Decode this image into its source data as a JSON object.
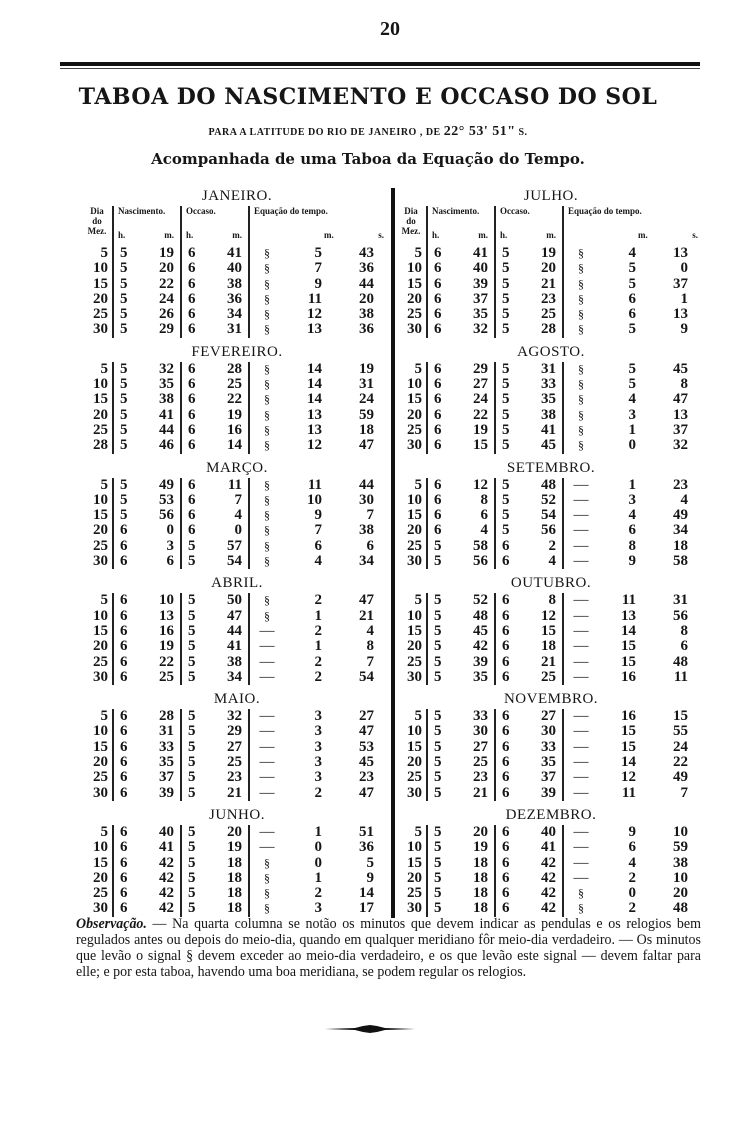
{
  "page_number": "20",
  "title": "TABOA DO NASCIMENTO E OCCASO DO SOL",
  "subtitle_prefix": "PARA A LATITUDE DO RIO DE JANEIRO ,  DE",
  "subtitle_latitude": "22° 53' 51\"",
  "subtitle_suffix": "S.",
  "subtitle2": "Acompanhada de uma Taboa da Equação do Tempo.",
  "headers": {
    "day": [
      "Dia",
      "do",
      "Mez."
    ],
    "nascimento": "Nascimento.",
    "occaso": "Occaso.",
    "equacao": "Equação do tempo.",
    "h": "h.",
    "m": "m.",
    "s": "s."
  },
  "signs": {
    "plus": "§",
    "minus": "—"
  },
  "months": [
    {
      "name": "JANEIRO.",
      "rows": [
        [
          "5",
          "5",
          "19",
          "6",
          "41",
          "plus",
          "5",
          "43"
        ],
        [
          "10",
          "5",
          "20",
          "6",
          "40",
          "plus",
          "7",
          "36"
        ],
        [
          "15",
          "5",
          "22",
          "6",
          "38",
          "plus",
          "9",
          "44"
        ],
        [
          "20",
          "5",
          "24",
          "6",
          "36",
          "plus",
          "11",
          "20"
        ],
        [
          "25",
          "5",
          "26",
          "6",
          "34",
          "plus",
          "12",
          "38"
        ],
        [
          "30",
          "5",
          "29",
          "6",
          "31",
          "plus",
          "13",
          "36"
        ]
      ]
    },
    {
      "name": "FEVEREIRO.",
      "rows": [
        [
          "5",
          "5",
          "32",
          "6",
          "28",
          "plus",
          "14",
          "19"
        ],
        [
          "10",
          "5",
          "35",
          "6",
          "25",
          "plus",
          "14",
          "31"
        ],
        [
          "15",
          "5",
          "38",
          "6",
          "22",
          "plus",
          "14",
          "24"
        ],
        [
          "20",
          "5",
          "41",
          "6",
          "19",
          "plus",
          "13",
          "59"
        ],
        [
          "25",
          "5",
          "44",
          "6",
          "16",
          "plus",
          "13",
          "18"
        ],
        [
          "28",
          "5",
          "46",
          "6",
          "14",
          "plus",
          "12",
          "47"
        ]
      ]
    },
    {
      "name": "MARÇO.",
      "rows": [
        [
          "5",
          "5",
          "49",
          "6",
          "11",
          "plus",
          "11",
          "44"
        ],
        [
          "10",
          "5",
          "53",
          "6",
          "7",
          "plus",
          "10",
          "30"
        ],
        [
          "15",
          "5",
          "56",
          "6",
          "4",
          "plus",
          "9",
          "7"
        ],
        [
          "20",
          "6",
          "0",
          "6",
          "0",
          "plus",
          "7",
          "38"
        ],
        [
          "25",
          "6",
          "3",
          "5",
          "57",
          "plus",
          "6",
          "6"
        ],
        [
          "30",
          "6",
          "6",
          "5",
          "54",
          "plus",
          "4",
          "34"
        ]
      ]
    },
    {
      "name": "ABRIL.",
      "rows": [
        [
          "5",
          "6",
          "10",
          "5",
          "50",
          "plus",
          "2",
          "47"
        ],
        [
          "10",
          "6",
          "13",
          "5",
          "47",
          "plus",
          "1",
          "21"
        ],
        [
          "15",
          "6",
          "16",
          "5",
          "44",
          "minus",
          "2",
          "4"
        ],
        [
          "20",
          "6",
          "19",
          "5",
          "41",
          "minus",
          "1",
          "8"
        ],
        [
          "25",
          "6",
          "22",
          "5",
          "38",
          "minus",
          "2",
          "7"
        ],
        [
          "30",
          "6",
          "25",
          "5",
          "34",
          "minus",
          "2",
          "54"
        ]
      ]
    },
    {
      "name": "MAIO.",
      "rows": [
        [
          "5",
          "6",
          "28",
          "5",
          "32",
          "minus",
          "3",
          "27"
        ],
        [
          "10",
          "6",
          "31",
          "5",
          "29",
          "minus",
          "3",
          "47"
        ],
        [
          "15",
          "6",
          "33",
          "5",
          "27",
          "minus",
          "3",
          "53"
        ],
        [
          "20",
          "6",
          "35",
          "5",
          "25",
          "minus",
          "3",
          "45"
        ],
        [
          "25",
          "6",
          "37",
          "5",
          "23",
          "minus",
          "3",
          "23"
        ],
        [
          "30",
          "6",
          "39",
          "5",
          "21",
          "minus",
          "2",
          "47"
        ]
      ]
    },
    {
      "name": "JUNHO.",
      "rows": [
        [
          "5",
          "6",
          "40",
          "5",
          "20",
          "minus",
          "1",
          "51"
        ],
        [
          "10",
          "6",
          "41",
          "5",
          "19",
          "minus",
          "0",
          "36"
        ],
        [
          "15",
          "6",
          "42",
          "5",
          "18",
          "plus",
          "0",
          "5"
        ],
        [
          "20",
          "6",
          "42",
          "5",
          "18",
          "plus",
          "1",
          "9"
        ],
        [
          "25",
          "6",
          "42",
          "5",
          "18",
          "plus",
          "2",
          "14"
        ],
        [
          "30",
          "6",
          "42",
          "5",
          "18",
          "plus",
          "3",
          "17"
        ]
      ]
    },
    {
      "name": "JULHO.",
      "rows": [
        [
          "5",
          "6",
          "41",
          "5",
          "19",
          "plus",
          "4",
          "13"
        ],
        [
          "10",
          "6",
          "40",
          "5",
          "20",
          "plus",
          "5",
          "0"
        ],
        [
          "15",
          "6",
          "39",
          "5",
          "21",
          "plus",
          "5",
          "37"
        ],
        [
          "20",
          "6",
          "37",
          "5",
          "23",
          "plus",
          "6",
          "1"
        ],
        [
          "25",
          "6",
          "35",
          "5",
          "25",
          "plus",
          "6",
          "13"
        ],
        [
          "30",
          "6",
          "32",
          "5",
          "28",
          "plus",
          "5",
          "9"
        ]
      ]
    },
    {
      "name": "AGOSTO.",
      "rows": [
        [
          "5",
          "6",
          "29",
          "5",
          "31",
          "plus",
          "5",
          "45"
        ],
        [
          "10",
          "6",
          "27",
          "5",
          "33",
          "plus",
          "5",
          "8"
        ],
        [
          "15",
          "6",
          "24",
          "5",
          "35",
          "plus",
          "4",
          "47"
        ],
        [
          "20",
          "6",
          "22",
          "5",
          "38",
          "plus",
          "3",
          "13"
        ],
        [
          "25",
          "6",
          "19",
          "5",
          "41",
          "plus",
          "1",
          "37"
        ],
        [
          "30",
          "6",
          "15",
          "5",
          "45",
          "plus",
          "0",
          "32"
        ]
      ]
    },
    {
      "name": "SETEMBRO.",
      "rows": [
        [
          "5",
          "6",
          "12",
          "5",
          "48",
          "minus",
          "1",
          "23"
        ],
        [
          "10",
          "6",
          "8",
          "5",
          "52",
          "minus",
          "3",
          "4"
        ],
        [
          "15",
          "6",
          "6",
          "5",
          "54",
          "minus",
          "4",
          "49"
        ],
        [
          "20",
          "6",
          "4",
          "5",
          "56",
          "minus",
          "6",
          "34"
        ],
        [
          "25",
          "5",
          "58",
          "6",
          "2",
          "minus",
          "8",
          "18"
        ],
        [
          "30",
          "5",
          "56",
          "6",
          "4",
          "minus",
          "9",
          "58"
        ]
      ]
    },
    {
      "name": "OUTUBRO.",
      "rows": [
        [
          "5",
          "5",
          "52",
          "6",
          "8",
          "minus",
          "11",
          "31"
        ],
        [
          "10",
          "5",
          "48",
          "6",
          "12",
          "minus",
          "13",
          "56"
        ],
        [
          "15",
          "5",
          "45",
          "6",
          "15",
          "minus",
          "14",
          "8"
        ],
        [
          "20",
          "5",
          "42",
          "6",
          "18",
          "minus",
          "15",
          "6"
        ],
        [
          "25",
          "5",
          "39",
          "6",
          "21",
          "minus",
          "15",
          "48"
        ],
        [
          "30",
          "5",
          "35",
          "6",
          "25",
          "minus",
          "16",
          "11"
        ]
      ]
    },
    {
      "name": "NOVEMBRO.",
      "rows": [
        [
          "5",
          "5",
          "33",
          "6",
          "27",
          "minus",
          "16",
          "15"
        ],
        [
          "10",
          "5",
          "30",
          "6",
          "30",
          "minus",
          "15",
          "55"
        ],
        [
          "15",
          "5",
          "27",
          "6",
          "33",
          "minus",
          "15",
          "24"
        ],
        [
          "20",
          "5",
          "25",
          "6",
          "35",
          "minus",
          "14",
          "22"
        ],
        [
          "25",
          "5",
          "23",
          "6",
          "37",
          "minus",
          "12",
          "49"
        ],
        [
          "30",
          "5",
          "21",
          "6",
          "39",
          "minus",
          "11",
          "7"
        ]
      ]
    },
    {
      "name": "DEZEMBRO.",
      "rows": [
        [
          "5",
          "5",
          "20",
          "6",
          "40",
          "minus",
          "9",
          "10"
        ],
        [
          "10",
          "5",
          "19",
          "6",
          "41",
          "minus",
          "6",
          "59"
        ],
        [
          "15",
          "5",
          "18",
          "6",
          "42",
          "minus",
          "4",
          "38"
        ],
        [
          "20",
          "5",
          "18",
          "6",
          "42",
          "minus",
          "2",
          "10"
        ],
        [
          "25",
          "5",
          "18",
          "6",
          "42",
          "plus",
          "0",
          "20"
        ],
        [
          "30",
          "5",
          "18",
          "6",
          "42",
          "plus",
          "2",
          "48"
        ]
      ]
    }
  ],
  "observation_label": "Observação.",
  "observation_text": " — Na quarta columna se notão os minutos que devem indicar as pendulas e os relogios bem regulados antes ou depois do meio-dia, quando em qualquer meridiano fôr meio-dia verdadeiro. — Os minutos que levão o signal § devem exceder ao meio-dia verdadeiro, e os que levão este signal — devem faltar para elle; e por esta taboa, havendo uma boa meridiana, se podem regular os relogios."
}
